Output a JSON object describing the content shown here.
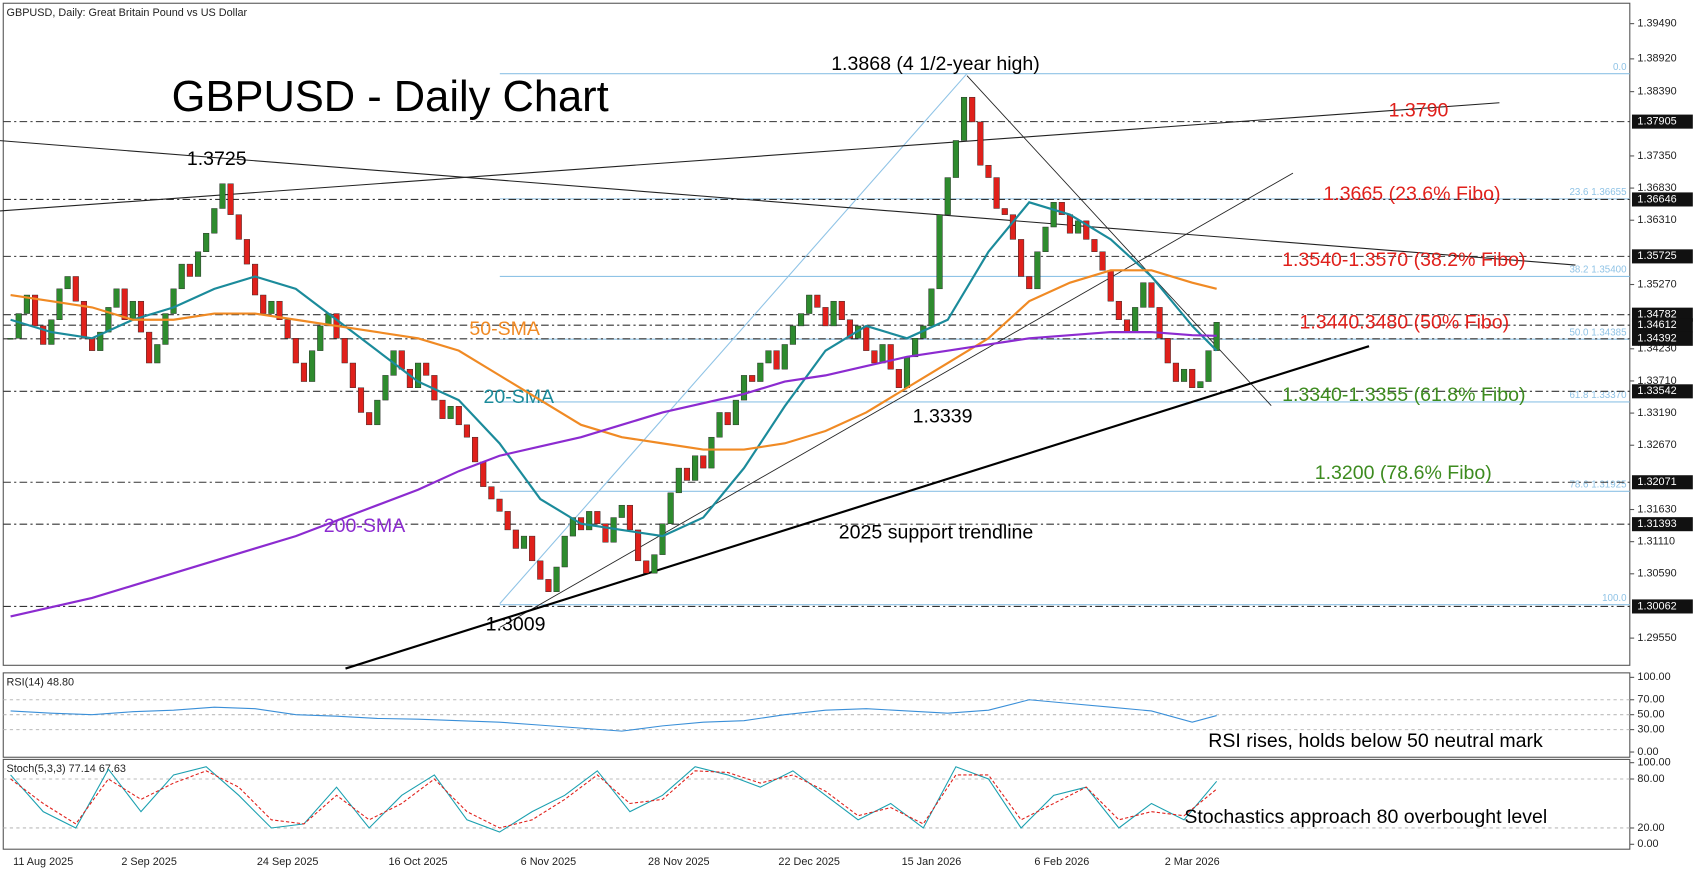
{
  "chart_data": [
    {
      "type": "candlestick",
      "title": "GBPUSD, Daily:  Great Britain Pound vs US Dollar",
      "categories": [
        null,
        null,
        null,
        null,
        "11 Aug 2025",
        null,
        null,
        null,
        null,
        null,
        null,
        null,
        null,
        null,
        null,
        null,
        null,
        "2 Sep 2025",
        null,
        null,
        null,
        null,
        null,
        null,
        null,
        null,
        null,
        null,
        null,
        null,
        null,
        null,
        null,
        null,
        "24 Sep 2025",
        null,
        null,
        null,
        null,
        null,
        null,
        null,
        null,
        null,
        null,
        null,
        null,
        null,
        null,
        null,
        "16 Oct 2025",
        null,
        null,
        null,
        null,
        null,
        null,
        null,
        null,
        null,
        null,
        null,
        null,
        null,
        null,
        null,
        "6 Nov 2025",
        null,
        null,
        null,
        null,
        null,
        null,
        null,
        null,
        null,
        null,
        null,
        null,
        null,
        null,
        null,
        "28 Nov 2025",
        null,
        null,
        null,
        null,
        null,
        null,
        null,
        null,
        null,
        null,
        null,
        null,
        null,
        null,
        null,
        "22 Dec 2025",
        null,
        null,
        null,
        null,
        null,
        null,
        null,
        null,
        null,
        null,
        null,
        null,
        null,
        null,
        "15 Jan 2026",
        null,
        null,
        null,
        null,
        null,
        null,
        null,
        null,
        null,
        null,
        null,
        null,
        null,
        null,
        null,
        "6 Feb 2026",
        null,
        null,
        null,
        null,
        null,
        null,
        null,
        null,
        null,
        null,
        null,
        null,
        null,
        null,
        null,
        "2 Mar 2026",
        null,
        null,
        null
      ],
      "values": [
        1.344,
        1.348,
        1.351,
        1.346,
        1.343,
        1.347,
        1.352,
        1.354,
        1.35,
        1.344,
        1.342,
        1.345,
        1.349,
        1.352,
        1.347,
        1.35,
        1.345,
        1.34,
        1.343,
        1.348,
        1.352,
        1.356,
        1.354,
        1.358,
        1.361,
        1.365,
        1.369,
        1.364,
        1.36,
        1.356,
        1.351,
        1.348,
        1.35,
        1.347,
        1.344,
        1.34,
        1.337,
        1.342,
        1.346,
        1.348,
        1.344,
        1.34,
        1.336,
        1.332,
        1.33,
        1.334,
        1.338,
        1.342,
        1.339,
        1.336,
        1.34,
        1.338,
        1.334,
        1.331,
        1.333,
        1.33,
        1.328,
        1.324,
        1.32,
        1.318,
        1.316,
        1.313,
        1.31,
        1.312,
        1.308,
        1.305,
        1.303,
        1.307,
        1.312,
        1.315,
        1.313,
        1.316,
        1.314,
        1.311,
        1.315,
        1.317,
        1.313,
        1.308,
        1.306,
        1.309,
        1.314,
        1.319,
        1.323,
        1.321,
        1.325,
        1.323,
        1.328,
        1.332,
        1.33,
        1.334,
        1.338,
        1.337,
        1.34,
        1.342,
        1.339,
        1.343,
        1.346,
        1.348,
        1.351,
        1.349,
        1.346,
        1.35,
        1.347,
        1.344,
        1.346,
        1.342,
        1.34,
        1.343,
        1.339,
        1.336,
        1.341,
        1.344,
        1.346,
        1.352,
        1.364,
        1.37,
        1.376,
        1.383,
        1.379,
        1.372,
        1.37,
        1.365,
        1.364,
        1.36,
        1.354,
        1.352,
        1.358,
        1.362,
        1.366,
        1.364,
        1.361,
        1.363,
        1.36,
        1.358,
        1.355,
        1.35,
        1.347,
        1.345,
        1.349,
        1.353,
        1.349,
        1.344,
        1.34,
        1.337,
        1.339,
        1.336,
        1.337,
        1.342,
        1.3466
      ],
      "up_color": "#2e8b2e",
      "down_color": "#e0201b",
      "lines": [
        {
          "name": "20-SMA",
          "color": "#1b8b9b",
          "x": [
            0,
            5,
            10,
            15,
            20,
            25,
            30,
            35,
            40,
            45,
            50,
            55,
            60,
            65,
            70,
            75,
            80,
            85,
            90,
            95,
            100,
            105,
            110,
            115,
            120,
            125,
            130,
            135,
            140,
            145,
            148
          ],
          "values": [
            1.347,
            1.345,
            1.344,
            1.347,
            1.349,
            1.352,
            1.354,
            1.352,
            1.347,
            1.342,
            1.337,
            1.334,
            1.327,
            1.318,
            1.314,
            1.313,
            1.312,
            1.315,
            1.323,
            1.333,
            1.342,
            1.346,
            1.344,
            1.347,
            1.358,
            1.366,
            1.364,
            1.36,
            1.354,
            1.346,
            1.342
          ]
        },
        {
          "name": "50-SMA",
          "color": "#f08a24",
          "x": [
            0,
            5,
            10,
            15,
            20,
            25,
            30,
            35,
            40,
            45,
            50,
            55,
            60,
            65,
            70,
            75,
            80,
            85,
            90,
            95,
            100,
            105,
            110,
            115,
            120,
            125,
            130,
            135,
            140,
            145,
            148
          ],
          "values": [
            1.351,
            1.35,
            1.349,
            1.347,
            1.347,
            1.348,
            1.348,
            1.347,
            1.346,
            1.345,
            1.344,
            1.342,
            1.338,
            1.334,
            1.33,
            1.328,
            1.327,
            1.326,
            1.326,
            1.327,
            1.329,
            1.332,
            1.336,
            1.34,
            1.344,
            1.35,
            1.353,
            1.355,
            1.355,
            1.353,
            1.352
          ]
        },
        {
          "name": "200-SMA",
          "color": "#8c2bd0",
          "x": [
            0,
            5,
            10,
            15,
            20,
            25,
            30,
            35,
            40,
            45,
            50,
            55,
            60,
            65,
            70,
            75,
            80,
            85,
            90,
            95,
            100,
            105,
            110,
            115,
            120,
            125,
            130,
            135,
            140,
            145,
            148
          ],
          "values": [
            1.299,
            1.3005,
            1.302,
            1.304,
            1.306,
            1.308,
            1.31,
            1.312,
            1.3145,
            1.317,
            1.3195,
            1.3225,
            1.325,
            1.3265,
            1.328,
            1.33,
            1.332,
            1.3335,
            1.335,
            1.337,
            1.338,
            1.3395,
            1.341,
            1.342,
            1.343,
            1.344,
            1.3445,
            1.345,
            1.345,
            1.3445,
            1.3444
          ]
        }
      ],
      "fibo_levels": [
        {
          "value": 1.3868,
          "label": "0.0"
        },
        {
          "value": 1.36655,
          "label": "23.6 1.36655"
        },
        {
          "value": 1.354,
          "label": "38.2 1.35400"
        },
        {
          "value": 1.34385,
          "label": "50.0 1.34385"
        },
        {
          "value": 1.3337,
          "label": "61.8 1.33370"
        },
        {
          "value": 1.31925,
          "label": "78.6 1.31925"
        },
        {
          "value": 1.3009,
          "label": "100.0"
        }
      ],
      "fibo_color": "#8fc3e6",
      "levels": [
        {
          "value": 1.37905,
          "label": "1.37905"
        },
        {
          "value": 1.36646,
          "label": "1.36646"
        },
        {
          "value": 1.35725,
          "label": "1.35725"
        },
        {
          "value": 1.34782,
          "label": "1.34782"
        },
        {
          "value": 1.34612,
          "label": "1.34612"
        },
        {
          "value": 1.34392,
          "label": "1.34392"
        },
        {
          "value": 1.33542,
          "label": "1.33542"
        },
        {
          "value": 1.32071,
          "label": "1.32071"
        },
        {
          "value": 1.31393,
          "label": "1.31393"
        },
        {
          "value": 1.30062,
          "label": "1.30062"
        }
      ],
      "ylim": [
        1.2911,
        1.3982
      ],
      "yticks": [
        {
          "value": 1.3949,
          "label": "1.39490"
        },
        {
          "value": 1.3892,
          "label": "1.38920"
        },
        {
          "value": 1.3839,
          "label": "1.38390"
        },
        {
          "value": 1.3735,
          "label": "1.37350"
        },
        {
          "value": 1.3683,
          "label": "1.36830"
        },
        {
          "value": 1.3631,
          "label": "1.36310"
        },
        {
          "value": 1.3527,
          "label": "1.35270"
        },
        {
          "value": 1.3423,
          "label": "1.34230"
        },
        {
          "value": 1.3371,
          "label": "1.33710"
        },
        {
          "value": 1.3319,
          "label": "1.33190"
        },
        {
          "value": 1.3267,
          "label": "1.32670"
        },
        {
          "value": 1.3163,
          "label": "1.31630"
        },
        {
          "value": 1.3111,
          "label": "1.31110"
        },
        {
          "value": 1.3059,
          "label": "1.30590"
        },
        {
          "value": 1.2955,
          "label": "1.29550"
        }
      ],
      "annotations": [
        {
          "text": "GBPUSD - Daily Chart",
          "color": "#000000"
        },
        {
          "text": "1.3868 (4 1/2-year high)",
          "color": "#000000"
        },
        {
          "text": "1.3725",
          "color": "#000000"
        },
        {
          "text": "1.3790",
          "color": "#e0201b"
        },
        {
          "text": "1.3665 (23.6% Fibo)",
          "color": "#e0201b"
        },
        {
          "text": "1.3540-1.3570 (38.2% Fibo)",
          "color": "#e0201b"
        },
        {
          "text": "1.3440.3480 (50% Fibo)",
          "color": "#e0201b"
        },
        {
          "text": "1.3340-1.3355 (61.8% Fibo)",
          "color": "#3d8b1f"
        },
        {
          "text": "1.3200 (78.6% Fibo)",
          "color": "#3d8b1f"
        },
        {
          "text": "2025 support trendline",
          "color": "#000000"
        },
        {
          "text": "1.3339",
          "color": "#000000"
        },
        {
          "text": "1.3009",
          "color": "#000000"
        }
      ]
    },
    {
      "type": "line",
      "title": "RSI(14) 48.80",
      "note": "RSI rises, holds below 50 neutral mark",
      "series": [
        {
          "color": "#3a8fd8",
          "style": "solid",
          "x": [
            0,
            5,
            10,
            15,
            20,
            25,
            30,
            35,
            40,
            45,
            50,
            55,
            60,
            65,
            70,
            75,
            80,
            85,
            90,
            95,
            100,
            105,
            110,
            115,
            120,
            125,
            130,
            135,
            140,
            145,
            148
          ],
          "values": [
            55,
            52,
            50,
            54,
            56,
            60,
            58,
            50,
            48,
            45,
            44,
            42,
            40,
            36,
            32,
            28,
            35,
            40,
            42,
            50,
            56,
            58,
            55,
            52,
            56,
            70,
            65,
            60,
            55,
            40,
            48.8
          ]
        }
      ],
      "ylim": [
        -7,
        106
      ],
      "yticks": [
        {
          "value": 100,
          "label": "100.00"
        },
        {
          "value": 70,
          "label": "70.00"
        },
        {
          "value": 50,
          "label": "50.00"
        },
        {
          "value": 30,
          "label": "30.00"
        },
        {
          "value": 0,
          "label": "0.00"
        }
      ]
    },
    {
      "type": "line",
      "title": "Stoch(5,3,3) 77.14 67.63",
      "note": "Stochastics approach 80 overbought level",
      "series": [
        {
          "color": "#1ba0b0",
          "style": "solid",
          "x": [
            0,
            4,
            8,
            12,
            16,
            20,
            24,
            28,
            32,
            36,
            40,
            44,
            48,
            52,
            56,
            60,
            64,
            68,
            72,
            76,
            80,
            84,
            88,
            92,
            96,
            100,
            104,
            108,
            112,
            116,
            120,
            124,
            128,
            132,
            136,
            140,
            144,
            148
          ],
          "values": [
            85,
            40,
            20,
            92,
            40,
            85,
            95,
            60,
            20,
            25,
            70,
            20,
            60,
            85,
            30,
            15,
            40,
            60,
            90,
            40,
            60,
            95,
            85,
            70,
            90,
            60,
            30,
            50,
            20,
            95,
            80,
            20,
            60,
            70,
            20,
            50,
            30,
            77.14
          ]
        },
        {
          "color": "#e0201b",
          "style": "dashed",
          "x": [
            0,
            4,
            8,
            12,
            16,
            20,
            24,
            28,
            32,
            36,
            40,
            44,
            48,
            52,
            56,
            60,
            64,
            68,
            72,
            76,
            80,
            84,
            88,
            92,
            96,
            100,
            104,
            108,
            112,
            116,
            120,
            124,
            128,
            132,
            136,
            140,
            144,
            148
          ],
          "values": [
            80,
            50,
            25,
            80,
            55,
            75,
            90,
            70,
            30,
            25,
            60,
            30,
            50,
            80,
            40,
            20,
            30,
            55,
            85,
            50,
            55,
            90,
            88,
            75,
            85,
            65,
            35,
            45,
            25,
            85,
            85,
            30,
            50,
            70,
            30,
            40,
            35,
            67.63
          ]
        }
      ],
      "ylim": [
        -6,
        104
      ],
      "yticks": [
        {
          "value": 100,
          "label": "100.00"
        },
        {
          "value": 80,
          "label": "80.00"
        },
        {
          "value": 20,
          "label": "20.00"
        },
        {
          "value": 0,
          "label": "0.00"
        }
      ]
    }
  ]
}
